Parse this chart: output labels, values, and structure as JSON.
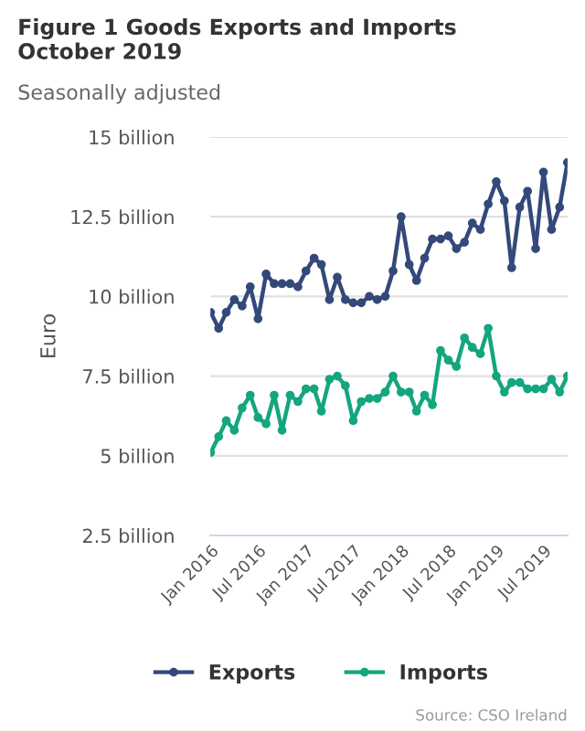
{
  "chart_data": {
    "type": "line",
    "title": "Figure 1 Goods Exports and Imports\nOctober 2019",
    "subtitle": "Seasonally adjusted",
    "ylabel": "Euro",
    "x": [
      "2016-01",
      "2016-02",
      "2016-03",
      "2016-04",
      "2016-05",
      "2016-06",
      "2016-07",
      "2016-08",
      "2016-09",
      "2016-10",
      "2016-11",
      "2016-12",
      "2017-01",
      "2017-02",
      "2017-03",
      "2017-04",
      "2017-05",
      "2017-06",
      "2017-07",
      "2017-08",
      "2017-09",
      "2017-10",
      "2017-11",
      "2017-12",
      "2018-01",
      "2018-02",
      "2018-03",
      "2018-04",
      "2018-05",
      "2018-06",
      "2018-07",
      "2018-08",
      "2018-09",
      "2018-10",
      "2018-11",
      "2018-12",
      "2019-01",
      "2019-02",
      "2019-03",
      "2019-04",
      "2019-05",
      "2019-06",
      "2019-07",
      "2019-08",
      "2019-09",
      "2019-10"
    ],
    "series": [
      {
        "name": "Exports",
        "color": "#34497a",
        "values": [
          9.5,
          9.0,
          9.5,
          9.9,
          9.7,
          10.3,
          9.3,
          10.7,
          10.4,
          10.4,
          10.4,
          10.3,
          10.8,
          11.2,
          11.0,
          9.9,
          10.6,
          9.9,
          9.8,
          9.8,
          10.0,
          9.9,
          10.0,
          10.8,
          12.5,
          11.0,
          10.5,
          11.2,
          11.8,
          11.8,
          11.9,
          11.5,
          11.7,
          12.3,
          12.1,
          12.9,
          13.6,
          13.0,
          10.9,
          12.8,
          13.3,
          11.5,
          13.9,
          12.1,
          12.8,
          14.2
        ]
      },
      {
        "name": "Imports",
        "color": "#13a67f",
        "values": [
          5.1,
          5.6,
          6.1,
          5.8,
          6.5,
          6.9,
          6.2,
          6.0,
          6.9,
          5.8,
          6.9,
          6.7,
          7.1,
          7.1,
          6.4,
          7.4,
          7.5,
          7.2,
          6.1,
          6.7,
          6.8,
          6.8,
          7.0,
          7.5,
          7.0,
          7.0,
          6.4,
          6.9,
          6.6,
          8.3,
          8.0,
          7.8,
          8.7,
          8.4,
          8.2,
          9.0,
          7.5,
          7.0,
          7.3,
          7.3,
          7.1,
          7.1,
          7.1,
          7.4,
          7.0,
          7.5
        ]
      }
    ],
    "ylim": [
      2.5,
      15
    ],
    "yticks": [
      {
        "value": 2.5,
        "label": "2.5 billion"
      },
      {
        "value": 5,
        "label": "5 billion"
      },
      {
        "value": 7.5,
        "label": "7.5 billion"
      },
      {
        "value": 10,
        "label": "10 billion"
      },
      {
        "value": 12.5,
        "label": "12.5 billion"
      },
      {
        "value": 15,
        "label": "15 billion"
      }
    ],
    "xlim": [
      "2016-01",
      "2019-10"
    ],
    "xticks": [
      {
        "value": "2016-01",
        "label": "Jan 2016"
      },
      {
        "value": "2016-07",
        "label": "Jul 2016"
      },
      {
        "value": "2017-01",
        "label": "Jan 2017"
      },
      {
        "value": "2017-07",
        "label": "Jul 2017"
      },
      {
        "value": "2018-01",
        "label": "Jan 2018"
      },
      {
        "value": "2018-07",
        "label": "Jul 2018"
      },
      {
        "value": "2019-01",
        "label": "Jan 2019"
      },
      {
        "value": "2019-07",
        "label": "Jul 2019"
      }
    ],
    "grid": "y",
    "legend": "bottom",
    "marker": "circle",
    "line_style": "solid",
    "annotations": [
      "Source: CSO Ireland"
    ]
  }
}
